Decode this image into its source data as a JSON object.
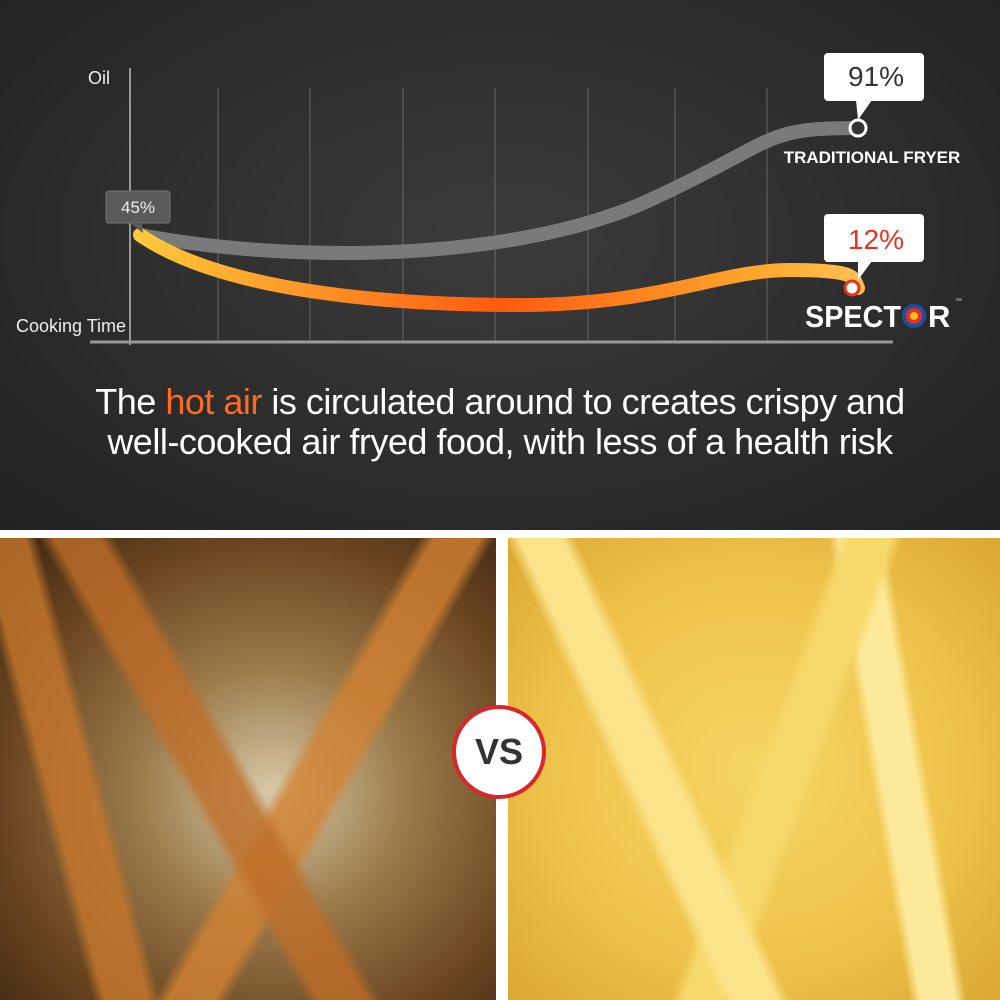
{
  "chart_data": {
    "type": "line",
    "ylabel": "Oil",
    "xlabel": "Cooking Time",
    "grid": "vertical lines",
    "series": [
      {
        "name": "TRADITIONAL FRYER",
        "start": 45,
        "end": 91,
        "start_label": "45%",
        "end_label": "91%",
        "color": "#7a7a7a"
      },
      {
        "name": "SPECTOR",
        "start": 45,
        "end": 12,
        "end_label": "12%",
        "color": "#ff7a1a"
      }
    ],
    "units": "%"
  },
  "caption": {
    "line1_pre": "The ",
    "line1_highlight": "hot air",
    "line1_post": " is circulated around to creates crispy and",
    "line2": "well-cooked air fryed food, with less of a health risk"
  },
  "colors": {
    "highlight": "#ff6a1f",
    "spector_value": "#e8321e",
    "vs_border": "#d8262a"
  },
  "vs_label": "VS",
  "brand_tm": "™"
}
